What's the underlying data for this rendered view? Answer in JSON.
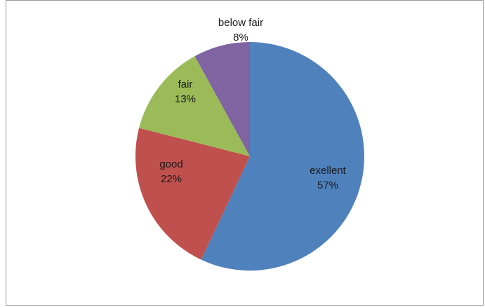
{
  "chart_data": {
    "type": "pie",
    "categories": [
      "exellent",
      "good",
      "fair",
      "below fair"
    ],
    "values": [
      57,
      22,
      13,
      8
    ],
    "labels": [
      {
        "name": "exellent",
        "pct": "57%"
      },
      {
        "name": "good",
        "pct": "22%"
      },
      {
        "name": "fair",
        "pct": "13%"
      },
      {
        "name": "below fair",
        "pct": "8%"
      }
    ],
    "colors": [
      "#4f81bd",
      "#c0504d",
      "#9bbb59",
      "#8064a2"
    ],
    "start_angle_deg": 0,
    "direction": "clockwise",
    "legend": "none",
    "title": ""
  }
}
